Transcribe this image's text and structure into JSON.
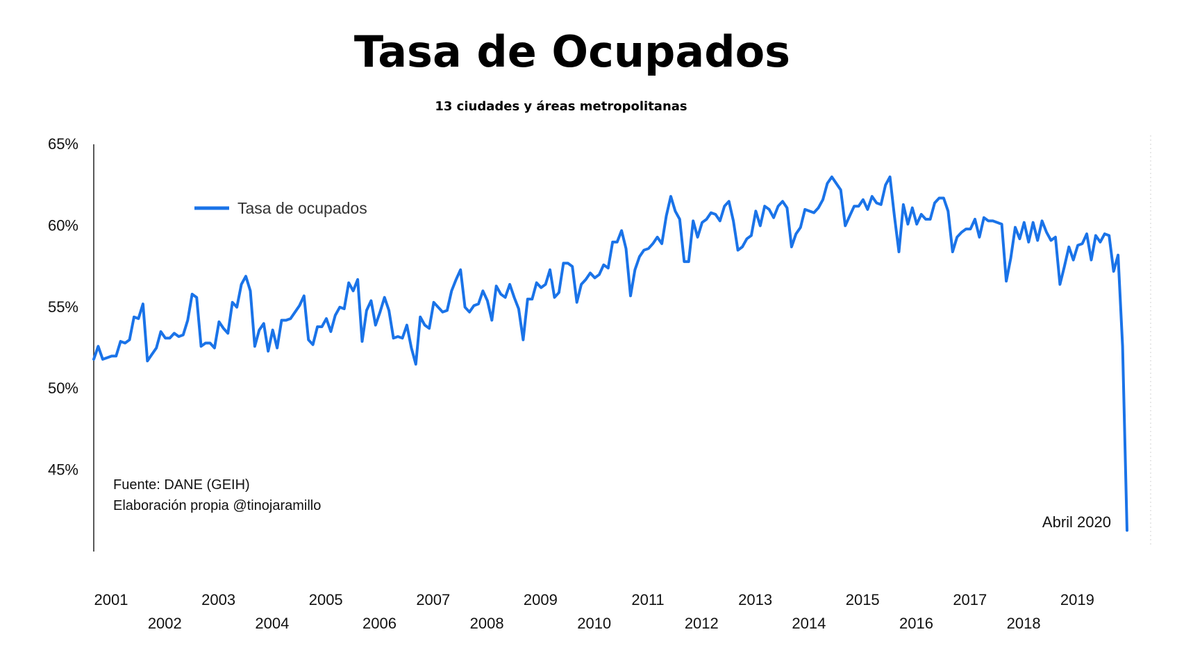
{
  "chart_data": {
    "type": "line",
    "title": "Tasa de Ocupados",
    "subtitle": "13 ciudades y áreas metropolitanas",
    "ylim": [
      40.0,
      65.0
    ],
    "yticks": [
      {
        "value": 65,
        "label": "65%"
      },
      {
        "value": 60,
        "label": "60%"
      },
      {
        "value": 55,
        "label": "55%"
      },
      {
        "value": 50,
        "label": "50%"
      },
      {
        "value": 45,
        "label": "45%"
      }
    ],
    "year_labels": [
      {
        "year": 2001,
        "label": "2001",
        "row": "top"
      },
      {
        "year": 2002,
        "label": "2002",
        "row": "bottom"
      },
      {
        "year": 2003,
        "label": "2003",
        "row": "top"
      },
      {
        "year": 2004,
        "label": "2004",
        "row": "bottom"
      },
      {
        "year": 2005,
        "label": "2005",
        "row": "top"
      },
      {
        "year": 2006,
        "label": "2006",
        "row": "bottom"
      },
      {
        "year": 2007,
        "label": "2007",
        "row": "top"
      },
      {
        "year": 2008,
        "label": "2008",
        "row": "bottom"
      },
      {
        "year": 2009,
        "label": "2009",
        "row": "top"
      },
      {
        "year": 2010,
        "label": "2010",
        "row": "bottom"
      },
      {
        "year": 2011,
        "label": "2011",
        "row": "top"
      },
      {
        "year": 2012,
        "label": "2012",
        "row": "bottom"
      },
      {
        "year": 2013,
        "label": "2013",
        "row": "top"
      },
      {
        "year": 2014,
        "label": "2014",
        "row": "bottom"
      },
      {
        "year": 2015,
        "label": "2015",
        "row": "top"
      },
      {
        "year": 2016,
        "label": "2016",
        "row": "bottom"
      },
      {
        "year": 2017,
        "label": "2017",
        "row": "top"
      },
      {
        "year": 2018,
        "label": "2018",
        "row": "bottom"
      },
      {
        "year": 2019,
        "label": "2019",
        "row": "top"
      }
    ],
    "series": [
      {
        "name": "Tasa de ocupados",
        "color": "#1a73e8",
        "start": "2001-01",
        "frequency": "monthly",
        "values": [
          51.8,
          52.6,
          51.8,
          51.9,
          52.0,
          52.0,
          52.9,
          52.8,
          53.0,
          54.4,
          54.3,
          55.2,
          51.7,
          52.1,
          52.5,
          53.5,
          53.1,
          53.1,
          53.4,
          53.2,
          53.3,
          54.2,
          55.8,
          55.6,
          52.6,
          52.8,
          52.8,
          52.5,
          54.1,
          53.7,
          53.4,
          55.3,
          55.0,
          56.4,
          56.9,
          56.0,
          52.6,
          53.6,
          54.0,
          52.3,
          53.6,
          52.5,
          54.2,
          54.2,
          54.3,
          54.7,
          55.1,
          55.7,
          53.0,
          52.7,
          53.8,
          53.8,
          54.3,
          53.5,
          54.5,
          55.0,
          54.9,
          56.5,
          56.0,
          56.7,
          52.9,
          54.8,
          55.4,
          53.9,
          54.7,
          55.6,
          54.8,
          53.1,
          53.2,
          53.1,
          53.9,
          52.5,
          51.5,
          54.4,
          53.9,
          53.7,
          55.3,
          55.0,
          54.7,
          54.8,
          56.0,
          56.7,
          57.3,
          55.0,
          54.7,
          55.1,
          55.2,
          56.0,
          55.4,
          54.2,
          56.3,
          55.8,
          55.6,
          56.4,
          55.6,
          54.9,
          53.0,
          55.5,
          55.5,
          56.5,
          56.2,
          56.4,
          57.3,
          55.6,
          55.9,
          57.7,
          57.7,
          57.5,
          55.3,
          56.4,
          56.7,
          57.1,
          56.8,
          57.0,
          57.6,
          57.4,
          59.0,
          59.0,
          59.7,
          58.6,
          55.7,
          57.3,
          58.1,
          58.5,
          58.6,
          58.9,
          59.3,
          58.9,
          60.6,
          61.8,
          60.9,
          60.4,
          57.8,
          57.8,
          60.3,
          59.3,
          60.2,
          60.4,
          60.8,
          60.7,
          60.3,
          61.2,
          61.5,
          60.3,
          58.5,
          58.7,
          59.2,
          59.4,
          60.9,
          60.0,
          61.2,
          61.0,
          60.5,
          61.2,
          61.5,
          61.1,
          58.7,
          59.5,
          59.9,
          61.0,
          60.9,
          60.8,
          61.1,
          61.6,
          62.6,
          63.0,
          62.6,
          62.2,
          60.0,
          60.6,
          61.2,
          61.2,
          61.6,
          61.0,
          61.8,
          61.4,
          61.3,
          62.5,
          63.0,
          60.6,
          58.4,
          61.3,
          60.1,
          61.1,
          60.1,
          60.7,
          60.4,
          60.4,
          61.4,
          61.7,
          61.7,
          60.9,
          58.4,
          59.3,
          59.6,
          59.8,
          59.8,
          60.4,
          59.3,
          60.5,
          60.3,
          60.3,
          60.2,
          60.1,
          56.6,
          58.0,
          59.9,
          59.2,
          60.2,
          59.0,
          60.2,
          59.1,
          60.3,
          59.6,
          59.1,
          59.3,
          56.4,
          57.5,
          58.7,
          57.9,
          58.8,
          58.9,
          59.5,
          57.9,
          59.4,
          59.0,
          59.5,
          59.4,
          57.2,
          58.2,
          52.6,
          41.3
        ]
      }
    ],
    "annotations": [
      "Abril 2020"
    ],
    "source_lines": [
      "Fuente: DANE (GEIH)",
      "Elaboración propia @tinojaramillo"
    ],
    "legend": {
      "position": "top-left",
      "label": "Tasa de ocupados"
    },
    "grid": false
  }
}
